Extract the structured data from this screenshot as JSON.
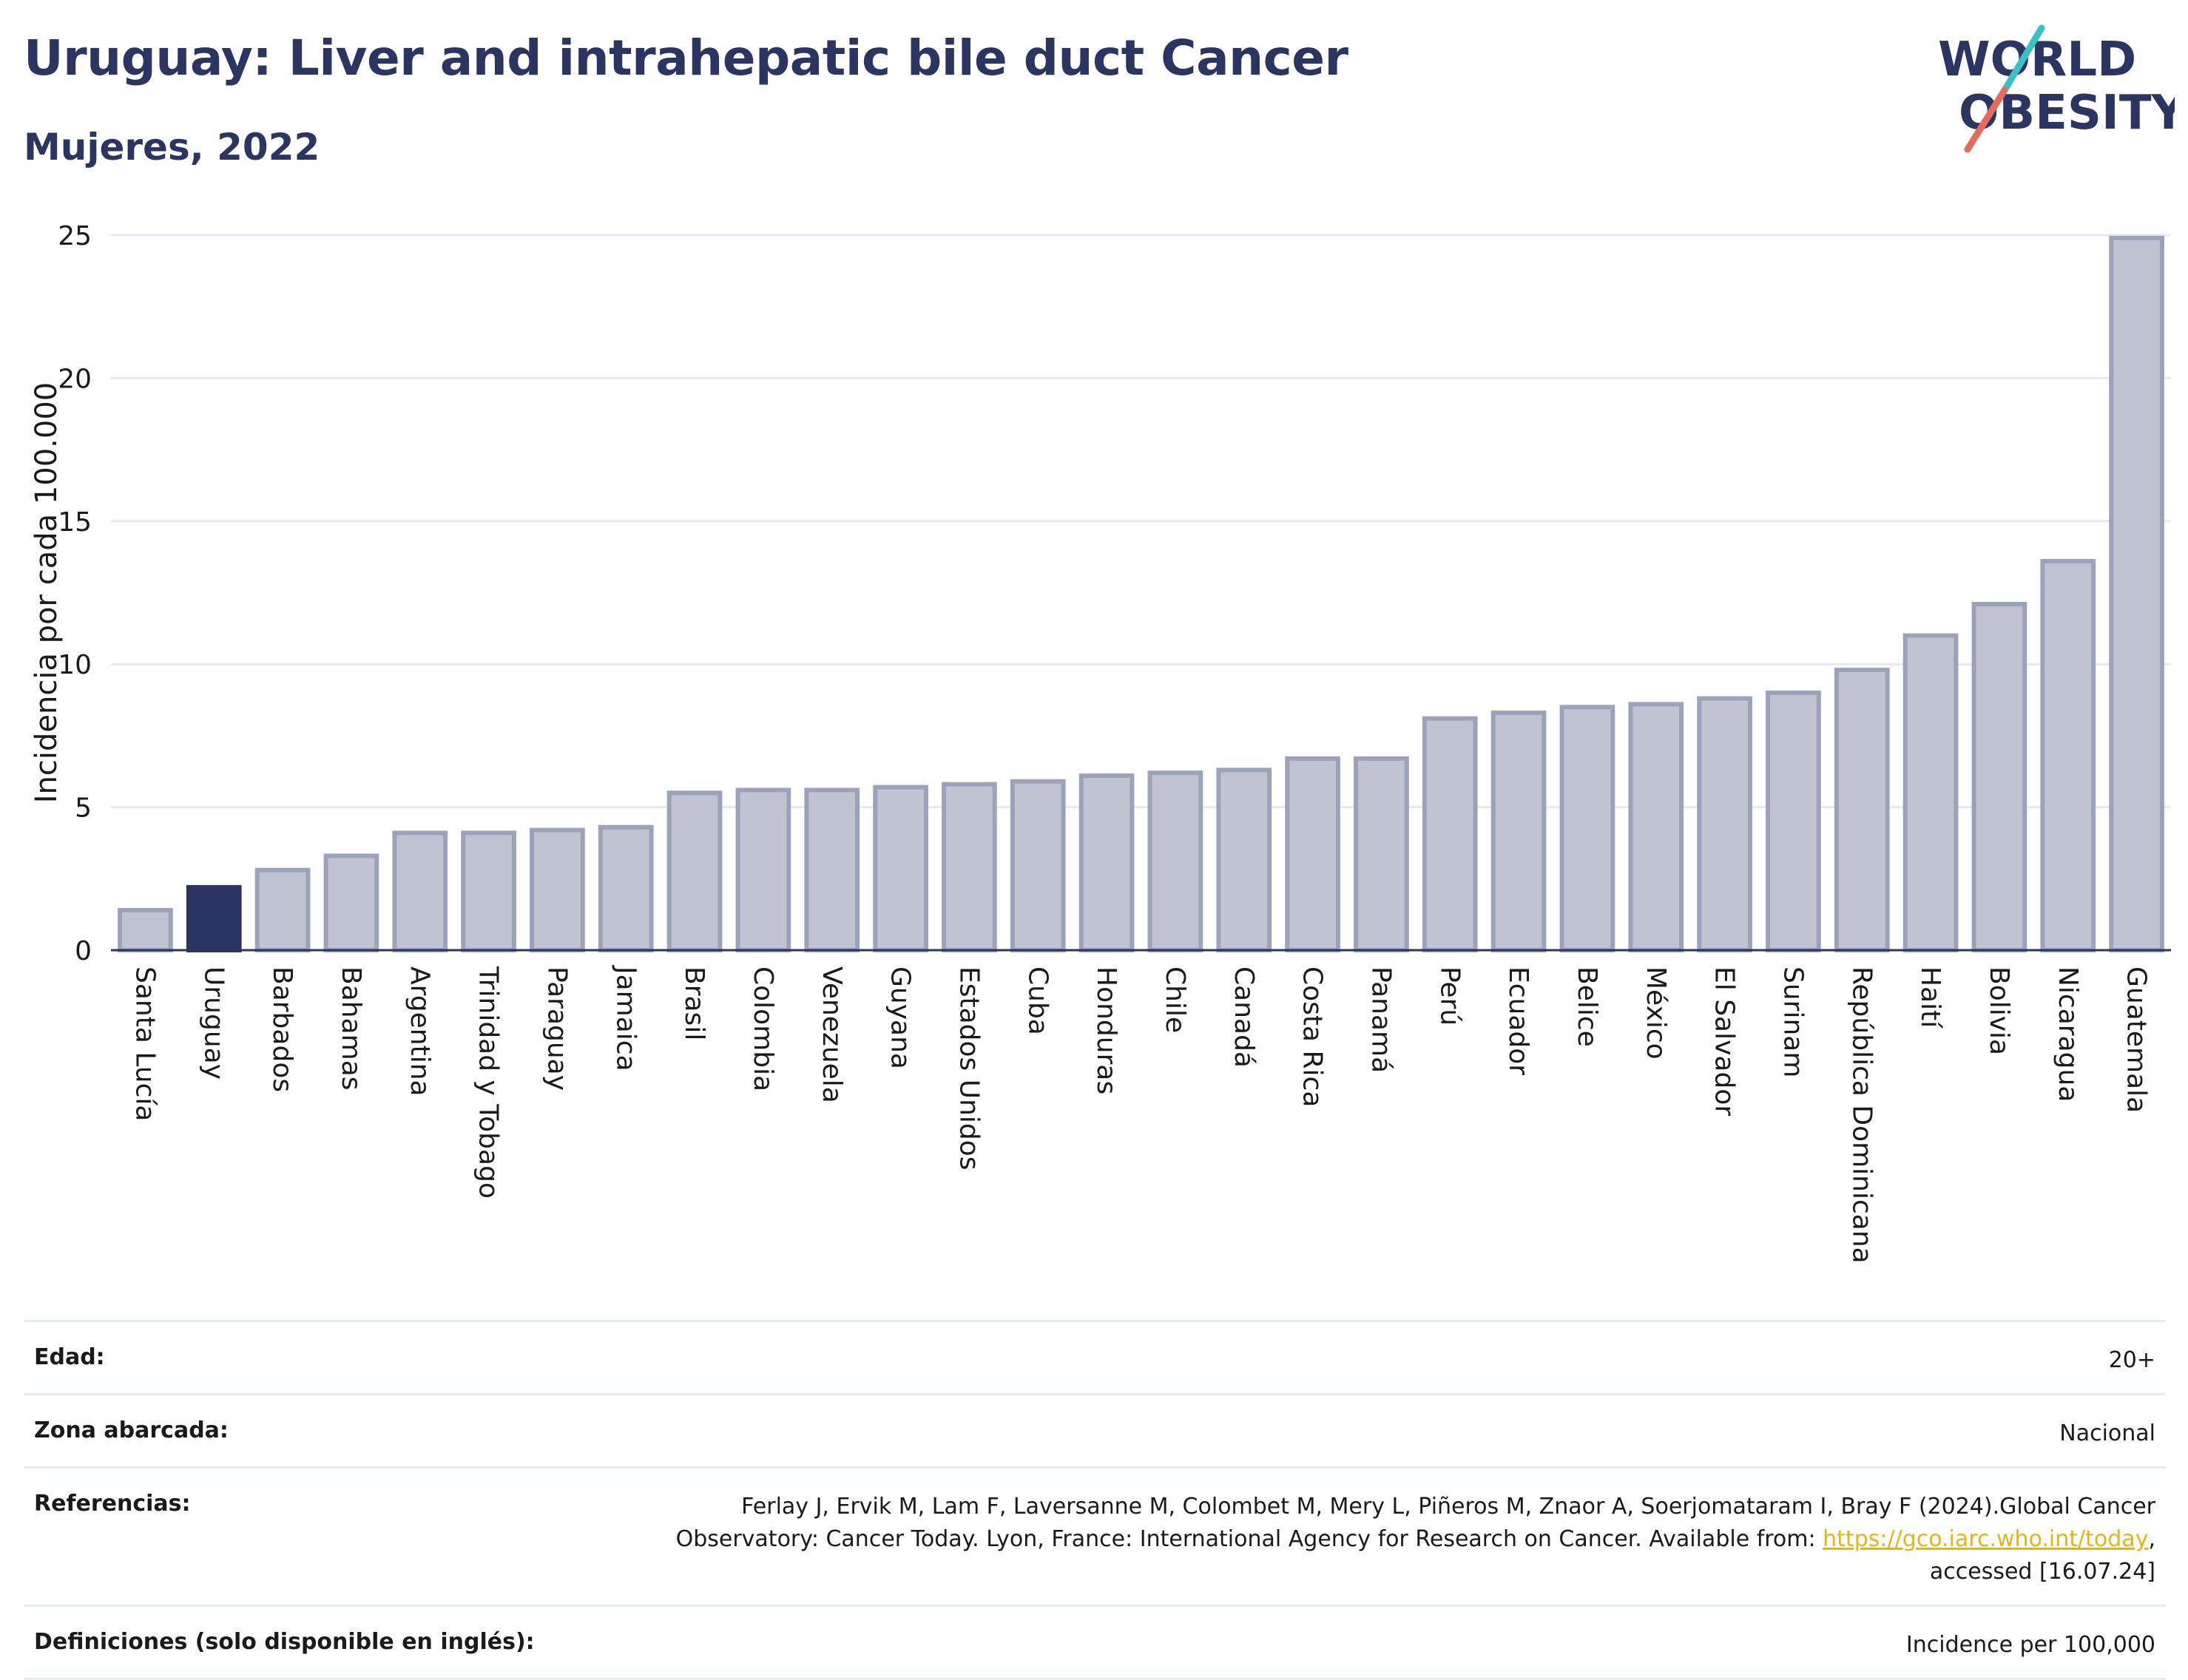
{
  "header": {
    "title": "Uruguay: Liver and intrahepatic bile duct Cancer",
    "subtitle": "Mujeres, 2022"
  },
  "logo": {
    "line1": "WORLD",
    "line2": "OBESITY",
    "accent_colors": [
      "#3bbfc9",
      "#e56b5d"
    ],
    "text_color": "#2b3561"
  },
  "chart_data": {
    "type": "bar",
    "ylabel": "Incidencia por cada 100.000",
    "ylim": [
      0,
      25
    ],
    "yticks": [
      0,
      5,
      10,
      15,
      20,
      25
    ],
    "grid": true,
    "highlight": "Uruguay",
    "colors": {
      "bar": "#c0c3d1",
      "bar_edge": "#9da2bb",
      "highlight": "#2b3561"
    },
    "categories": [
      "Santa Lucía",
      "Uruguay",
      "Barbados",
      "Bahamas",
      "Argentina",
      "Trinidad y Tobago",
      "Paraguay",
      "Jamaica",
      "Brasil",
      "Colombia",
      "Venezuela",
      "Guyana",
      "Estados Unidos",
      "Cuba",
      "Honduras",
      "Chile",
      "Canadá",
      "Costa Rica",
      "Panamá",
      "Perú",
      "Ecuador",
      "Belice",
      "México",
      "El Salvador",
      "Surinam",
      "República Dominicana",
      "Haití",
      "Bolivia",
      "Nicaragua",
      "Guatemala"
    ],
    "values": [
      1.4,
      2.2,
      2.8,
      3.3,
      4.1,
      4.1,
      4.2,
      4.3,
      5.5,
      5.6,
      5.6,
      5.7,
      5.8,
      5.9,
      6.1,
      6.2,
      6.3,
      6.7,
      6.7,
      8.1,
      8.3,
      8.5,
      8.6,
      8.8,
      9.0,
      9.8,
      11.0,
      12.1,
      13.6,
      24.9
    ]
  },
  "meta": {
    "age_label": "Edad:",
    "age_value": "20+",
    "zone_label": "Zona abarcada:",
    "zone_value": "Nacional",
    "refs_label": "Referencias:",
    "refs_text_1": "Ferlay J, Ervik M, Lam F, Laversanne M, Colombet M, Mery L, Piñeros M, Znaor A, Soerjomataram I, Bray F (2024).Global Cancer",
    "refs_text_2": "Observatory: Cancer Today. Lyon, France: International Agency for Research on Cancer. Available from: ",
    "refs_link": "https://gco.iarc.who.int/today",
    "refs_text_3": ",",
    "refs_text_4": "accessed [16.07.24]",
    "defs_label": "Definiciones (solo disponible en inglés):",
    "defs_value": "Incidence per 100,000"
  }
}
